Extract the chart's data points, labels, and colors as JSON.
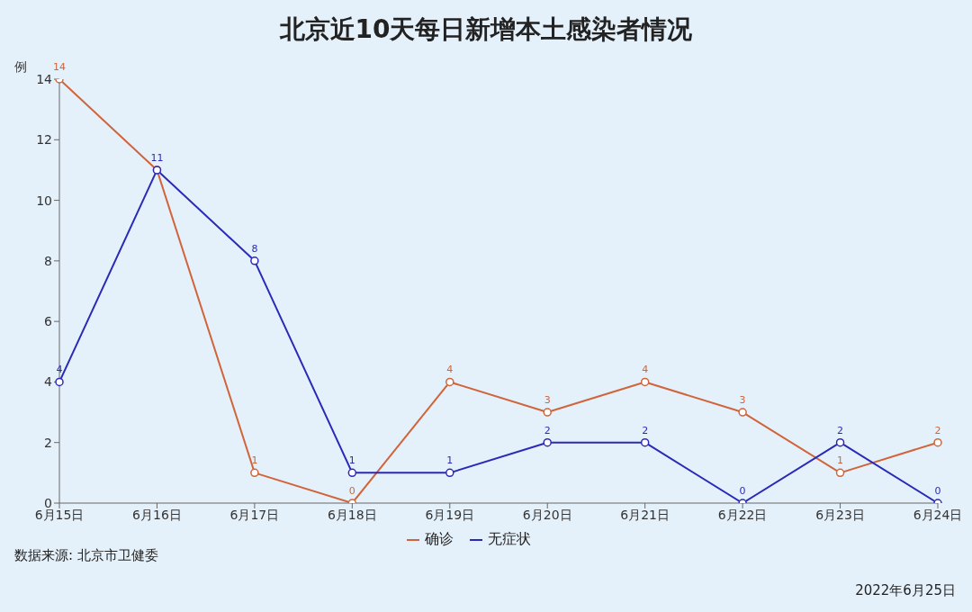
{
  "chart_data": {
    "type": "line",
    "title": "北京近10天每日新增本土感染者情况",
    "ylabel": "例",
    "categories": [
      "6月15日",
      "6月16日",
      "6月17日",
      "6月18日",
      "6月19日",
      "6月20日",
      "6月21日",
      "6月22日",
      "6月23日",
      "6月24日"
    ],
    "series": [
      {
        "name": "确诊",
        "color": "#d0643a",
        "values": [
          14,
          11,
          1,
          0,
          4,
          3,
          4,
          3,
          1,
          2
        ],
        "value_labels": [
          "14",
          null,
          "1",
          "0",
          "4",
          "3",
          "4",
          "3",
          "1",
          "2"
        ]
      },
      {
        "name": "无症状",
        "color": "#2a2ab8",
        "values": [
          4,
          11,
          8,
          1,
          1,
          2,
          2,
          0,
          2,
          0
        ],
        "value_labels": [
          "4",
          "11",
          "8",
          "1",
          "1",
          "2",
          "2",
          "0",
          "2",
          "0"
        ]
      }
    ],
    "ylim": [
      0,
      14
    ],
    "yticks": [
      0,
      2,
      4,
      6,
      8,
      10,
      12,
      14
    ],
    "grid": false,
    "legend": "bottom",
    "marker": "circle",
    "line_style": "solid",
    "annotations": [
      "数据来源: 北京市卫健委",
      "2022年6月25日"
    ]
  }
}
